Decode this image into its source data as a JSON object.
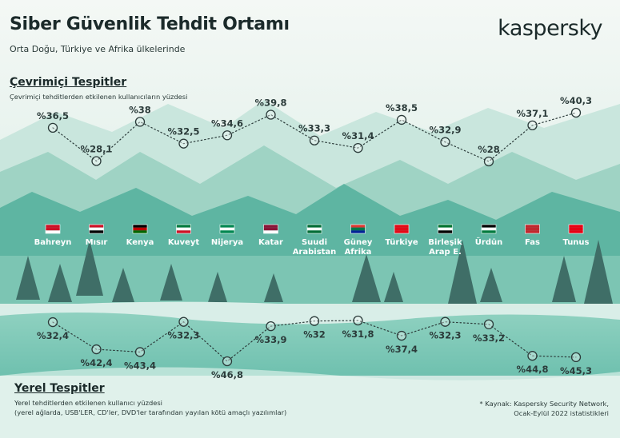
{
  "header": {
    "title": "Siber Güvenlik Tehdit Ortamı",
    "subtitle": "Orta Doğu, Türkiye ve Afrika ülkelerinde",
    "brand": "kaspersky"
  },
  "online_section": {
    "title": "Çevrimiçi Tespitler",
    "description": "Çevrimiçi tehditlerden etkilenen kullanıcıların yüzdesi"
  },
  "local_section": {
    "title": "Yerel Tespitler",
    "description_line1": "Yerel tehditlerden etkilenen kullanıcı yüzdesi",
    "description_line2": "(yerel ağlarda, USB'LER, CD'ler, DVD'ler tarafından yayılan kötü amaçlı yazılımlar)"
  },
  "source": {
    "line1": "* Kaynak: Kaspersky Security Network,",
    "line2": "Ocak-Eylül 2022 istatistikleri"
  },
  "colors": {
    "mountain_light": "#b6ddd2",
    "mountain_mid": "#6fbfae",
    "mountain_dark": "#3f9e8d",
    "tree": "#3f6e67",
    "water": "#d9eee8",
    "line": "#2b3b3a"
  },
  "chart_data": [
    {
      "type": "line",
      "title": "Çevrimiçi Tespitler",
      "categories": [
        "Bahreyn",
        "Mısır",
        "Kenya",
        "Kuveyt",
        "Nijerya",
        "Katar",
        "Suudi Arabistan",
        "Güney Afrika",
        "Türkiye",
        "Birleşik Arap E.",
        "Ürdün",
        "Fas",
        "Tunus"
      ],
      "values": [
        36.5,
        28.1,
        38,
        32.5,
        34.6,
        39.8,
        33.3,
        31.4,
        38.5,
        32.9,
        28,
        37.1,
        40.3
      ],
      "value_labels": [
        "%36,5",
        "%28,1",
        "%38",
        "%32,5",
        "%34,6",
        "%39,8",
        "%33,3",
        "%31,4",
        "%38,5",
        "%32,9",
        "%28",
        "%37,1",
        "%40,3"
      ],
      "unit": "%",
      "line_style": "dotted",
      "label_position": "above"
    },
    {
      "type": "line",
      "title": "Yerel Tespitler",
      "categories": [
        "Bahreyn",
        "Mısır",
        "Kenya",
        "Kuveyt",
        "Nijerya",
        "Katar",
        "Suudi Arabistan",
        "Güney Afrika",
        "Türkiye",
        "Birleşik Arap E.",
        "Ürdün",
        "Fas",
        "Tunus"
      ],
      "values": [
        32.4,
        42.4,
        43.4,
        32.3,
        46.8,
        33.9,
        32,
        31.8,
        37.4,
        32.3,
        33.2,
        44.8,
        45.3
      ],
      "value_labels": [
        "%32,4",
        "%42,4",
        "%43,4",
        "%32,3",
        "%46,8",
        "%33,9",
        "%32",
        "%31,8",
        "%37,4",
        "%32,3",
        "%33,2",
        "%44,8",
        "%45,3"
      ],
      "unit": "%",
      "line_style": "dotted",
      "label_position": "below",
      "scale": "inverted"
    }
  ],
  "countries": [
    {
      "name_line1": "Bahreyn",
      "name_line2": "",
      "flag": [
        "#ce1126",
        "#ce1126",
        "#ffffff"
      ]
    },
    {
      "name_line1": "Mısır",
      "name_line2": "",
      "flag": [
        "#ce1126",
        "#ffffff",
        "#000000"
      ]
    },
    {
      "name_line1": "Kenya",
      "name_line2": "",
      "flag": [
        "#000000",
        "#bb0000",
        "#006600"
      ]
    },
    {
      "name_line1": "Kuveyt",
      "name_line2": "",
      "flag": [
        "#007a3d",
        "#ffffff",
        "#ce1126"
      ]
    },
    {
      "name_line1": "Nijerya",
      "name_line2": "",
      "flag": [
        "#008751",
        "#ffffff",
        "#008751"
      ]
    },
    {
      "name_line1": "Katar",
      "name_line2": "",
      "flag": [
        "#8a1538",
        "#8a1538",
        "#ffffff"
      ]
    },
    {
      "name_line1": "Suudi",
      "name_line2": "Arabistan",
      "flag": [
        "#006c35",
        "#ffffff",
        "#006c35"
      ]
    },
    {
      "name_line1": "Güney",
      "name_line2": "Afrika",
      "flag": [
        "#de3831",
        "#007749",
        "#002395"
      ]
    },
    {
      "name_line1": "Türkiye",
      "name_line2": "",
      "flag": [
        "#e30a17",
        "#e30a17",
        "#e30a17"
      ]
    },
    {
      "name_line1": "Birleşik",
      "name_line2": "Arap E.",
      "flag": [
        "#00732f",
        "#ffffff",
        "#000000"
      ]
    },
    {
      "name_line1": "Ürdün",
      "name_line2": "",
      "flag": [
        "#000000",
        "#ffffff",
        "#007a3d"
      ]
    },
    {
      "name_line1": "Fas",
      "name_line2": "",
      "flag": [
        "#c1272d",
        "#c1272d",
        "#c1272d"
      ]
    },
    {
      "name_line1": "Tunus",
      "name_line2": "",
      "flag": [
        "#e70013",
        "#e70013",
        "#e70013"
      ]
    }
  ]
}
